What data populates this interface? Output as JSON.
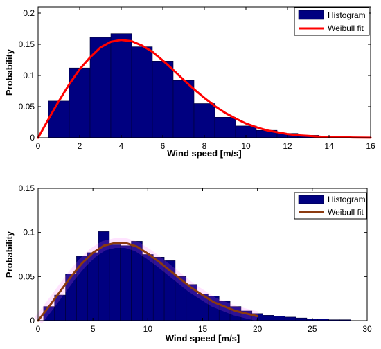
{
  "chart_data": [
    {
      "type": "bar",
      "title": "",
      "xlabel": "Wind speed [m/s]",
      "ylabel": "Probability",
      "xlim": [
        0,
        16
      ],
      "ylim": [
        0,
        0.21
      ],
      "xticks": [
        "0",
        "2",
        "4",
        "6",
        "8",
        "10",
        "12",
        "14",
        "16"
      ],
      "yticks": [
        "0",
        "0.05",
        "0.1",
        "0.15",
        "0.2"
      ],
      "grid": false,
      "legend_position": "top-right",
      "bin_width": 1,
      "series": [
        {
          "name": "Histogram",
          "type": "bar",
          "color": "#000080",
          "x": [
            1,
            2,
            3,
            4,
            5,
            6,
            7,
            8,
            9,
            10,
            11,
            12,
            13,
            14,
            15
          ],
          "values": [
            0.059,
            0.112,
            0.161,
            0.167,
            0.146,
            0.123,
            0.092,
            0.055,
            0.033,
            0.019,
            0.012,
            0.007,
            0.004,
            0.002,
            0.001
          ]
        },
        {
          "name": "Weibull fit",
          "type": "line",
          "color": "#ff0000",
          "x": [
            0,
            0.5,
            1,
            1.5,
            2,
            2.5,
            3,
            3.5,
            4,
            4.5,
            5,
            5.5,
            6,
            6.5,
            7,
            7.5,
            8,
            8.5,
            9,
            9.5,
            10,
            10.5,
            11,
            11.5,
            12,
            12.5,
            13,
            13.5,
            14,
            14.5,
            15,
            15.5,
            16
          ],
          "values": [
            0,
            0.03,
            0.059,
            0.086,
            0.11,
            0.129,
            0.145,
            0.154,
            0.157,
            0.155,
            0.148,
            0.138,
            0.124,
            0.109,
            0.093,
            0.078,
            0.064,
            0.051,
            0.04,
            0.031,
            0.023,
            0.017,
            0.012,
            0.009,
            0.006,
            0.004,
            0.003,
            0.002,
            0.001,
            0.001,
            0.0005,
            0.0003,
            0.0002
          ]
        }
      ]
    },
    {
      "type": "bar",
      "title": "",
      "xlabel": "Wind speed [m/s]",
      "ylabel": "Probability",
      "xlim": [
        0,
        30
      ],
      "ylim": [
        0,
        0.15
      ],
      "xticks": [
        "0",
        "5",
        "10",
        "15",
        "20",
        "25",
        "30"
      ],
      "yticks": [
        "0",
        "0.05",
        "0.1",
        "0.15"
      ],
      "grid": false,
      "legend_position": "top-right",
      "bin_width": 1,
      "series": [
        {
          "name": "Histogram",
          "type": "bar",
          "color": "#000080",
          "x": [
            1,
            2,
            3,
            4,
            5,
            6,
            7,
            8,
            9,
            10,
            11,
            12,
            13,
            14,
            15,
            16,
            17,
            18,
            19,
            20,
            21,
            22,
            23,
            24,
            25,
            26,
            27,
            28
          ],
          "values": [
            0.016,
            0.029,
            0.053,
            0.073,
            0.077,
            0.101,
            0.086,
            0.085,
            0.09,
            0.075,
            0.072,
            0.068,
            0.05,
            0.041,
            0.03,
            0.028,
            0.022,
            0.016,
            0.011,
            0.008,
            0.006,
            0.005,
            0.004,
            0.003,
            0.002,
            0.002,
            0.001,
            0.001
          ]
        },
        {
          "name": "Weibull fit",
          "type": "line",
          "color": "#8b3a0f",
          "x": [
            0,
            1,
            2,
            3,
            4,
            5,
            6,
            7,
            8,
            9,
            10,
            11,
            12,
            13,
            14,
            15,
            16,
            17,
            18,
            19,
            20
          ],
          "values": [
            0,
            0.016,
            0.033,
            0.05,
            0.065,
            0.077,
            0.085,
            0.088,
            0.088,
            0.084,
            0.076,
            0.067,
            0.057,
            0.047,
            0.037,
            0.029,
            0.021,
            0.016,
            0.011,
            0.008,
            0.005
          ]
        }
      ]
    }
  ]
}
